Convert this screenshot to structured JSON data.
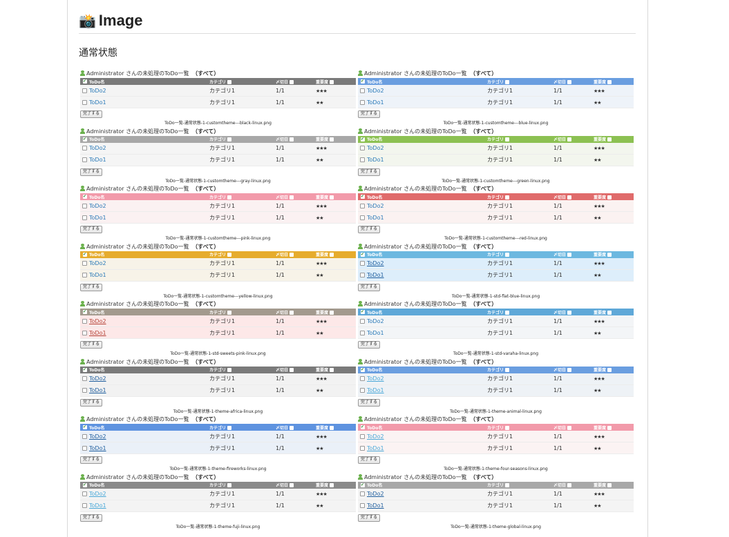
{
  "title": "Image",
  "subtitle": "通常状態",
  "panel_header": {
    "user": "Administrator",
    "text": "さんの未処理のToDo一覧",
    "filter": "（すべて）"
  },
  "columns": {
    "name": "ToDo名",
    "category": "カテゴリ",
    "due": "〆切日",
    "importance": "重要度"
  },
  "rows": [
    {
      "name": "ToDo2",
      "category": "カテゴリ1",
      "due": "1/1",
      "importance": "★★★"
    },
    {
      "name": "ToDo1",
      "category": "カテゴリ1",
      "due": "1/1",
      "importance": "★★"
    }
  ],
  "complete_button": "完了する",
  "themes": [
    {
      "caption": "ToDo一覧-通常状態-1-customtheme---black-linux.png",
      "header_color": "#7a7a7a",
      "row_bg": "#f4f4f4",
      "link_color": "#2a7ab8",
      "underline": false
    },
    {
      "caption": "ToDo一覧-通常状態-1-customtheme---blue-linux.png",
      "header_color": "#6a9ee0",
      "row_bg": "#eef3f9",
      "link_color": "#2a7ab8",
      "underline": false
    },
    {
      "caption": "ToDo一覧-通常状態-1-customtheme---gray-linux.png",
      "header_color": "#a8a8a8",
      "row_bg": "#f5f5f5",
      "link_color": "#2a7ab8",
      "underline": false
    },
    {
      "caption": "ToDo一覧-通常状態-1-customtheme---green-linux.png",
      "header_color": "#8cc152",
      "row_bg": "#f3f6ee",
      "link_color": "#2a7ab8",
      "underline": false
    },
    {
      "caption": "ToDo一覧-通常状態-1-customtheme---pink-linux.png",
      "header_color": "#f29aaa",
      "row_bg": "#fbf1f2",
      "link_color": "#2a7ab8",
      "underline": false
    },
    {
      "caption": "ToDo一覧-通常状態-1-customtheme---red-linux.png",
      "header_color": "#e06b6b",
      "row_bg": "#fbf2f1",
      "link_color": "#2a7ab8",
      "underline": false
    },
    {
      "caption": "ToDo一覧-通常状態-1-customtheme---yellow-linux.png",
      "header_color": "#e6ac2d",
      "row_bg": "#f7f3e8",
      "link_color": "#2a7ab8",
      "underline": false
    },
    {
      "caption": "ToDo一覧-通常状態-1-std-flat-blue-linux.png",
      "header_color": "#6cb8e0",
      "row_bg": "#ddeefb",
      "link_color": "#1f5e9e",
      "underline": true
    },
    {
      "caption": "ToDo一覧-通常状態-1-std-sweets-pink-linux.png",
      "header_color": "#a39a8e",
      "row_bg": "#fde8e8",
      "link_color": "#b5453a",
      "underline": true
    },
    {
      "caption": "ToDo一覧-通常状態-1-std-varaha-linux.png",
      "header_color": "#5fa8d8",
      "row_bg": "#f3f5f7",
      "link_color": "#2a7ab8",
      "underline": false
    },
    {
      "caption": "ToDo一覧-通常状態-1-theme-africa-linux.png",
      "header_color": "#7a7a7a",
      "row_bg": "#f2f2f2",
      "link_color": "#1f5e9e",
      "underline": true
    },
    {
      "caption": "ToDo一覧-通常状態-1-theme-animal-linux.png",
      "header_color": "#6a9ee0",
      "row_bg": "#eef2f6",
      "link_color": "#4aa8d8",
      "underline": true
    },
    {
      "caption": "ToDo一覧-通常状態-1-theme-fireworks-linux.png",
      "header_color": "#5e93e0",
      "row_bg": "#eaf0f8",
      "link_color": "#1f5e9e",
      "underline": true
    },
    {
      "caption": "ToDo一覧-通常状態-1-theme-four-seasons-linux.png",
      "header_color": "#f29aaa",
      "row_bg": "#fbf3f3",
      "link_color": "#4aa8d8",
      "underline": true
    },
    {
      "caption": "ToDo一覧-通常状態-1-theme-fuji-linux.png",
      "header_color": "#8a8a8a",
      "row_bg": "#f3f3f3",
      "link_color": "#4aa8d8",
      "underline": true
    },
    {
      "caption": "ToDo一覧-通常状態-1-theme-global-linux.png",
      "header_color": "#a8a8a8",
      "row_bg": "#f4f4f4",
      "link_color": "#1f5e9e",
      "underline": true
    }
  ]
}
